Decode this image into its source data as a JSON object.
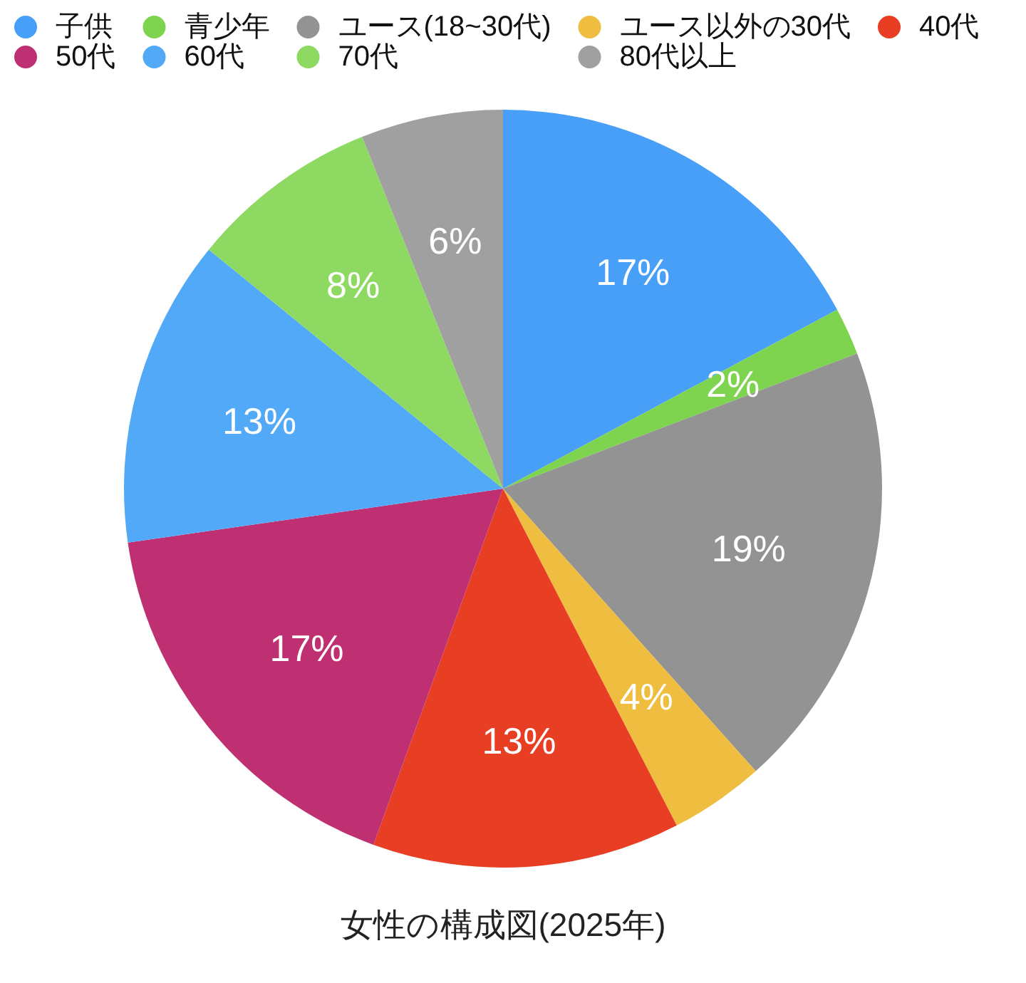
{
  "chart_data": {
    "type": "pie",
    "title": "女性の構成図(2025年)",
    "categories": [
      "子供",
      "青少年",
      "ユース(18~30代)",
      "ユース以外の30代",
      "40代",
      "50代",
      "60代",
      "70代",
      "80代以上"
    ],
    "values": [
      17,
      2,
      19,
      4,
      13,
      17,
      13,
      8,
      6
    ],
    "value_labels": [
      "17%",
      "2%",
      "19%",
      "4%",
      "13%",
      "17%",
      "13%",
      "8%",
      "6%"
    ],
    "colors": [
      "#479ff8",
      "#7ed34f",
      "#939393",
      "#efbd40",
      "#e83f24",
      "#bf3073",
      "#52a9f7",
      "#8dd962",
      "#a0a0a0"
    ],
    "legend": "top"
  }
}
